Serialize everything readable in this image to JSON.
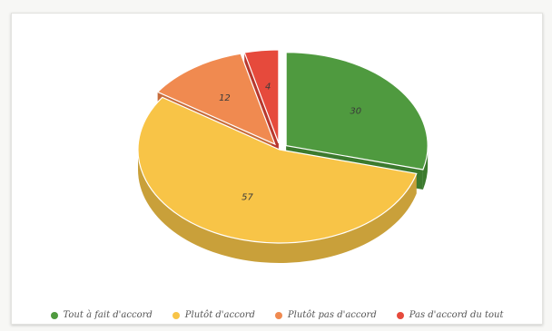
{
  "chart_data": {
    "type": "pie",
    "three_d": true,
    "legend_position": "bottom",
    "title": "",
    "categories": [
      "Tout à fait d'accord",
      "Plutôt d'accord",
      "Plutôt pas d'accord",
      "Pas d'accord du tout"
    ],
    "values": [
      30,
      57,
      12,
      4
    ],
    "labels": [
      "30",
      "57",
      "12",
      "4"
    ],
    "colors": [
      "#4f9a3f",
      "#f8c447",
      "#f08a50",
      "#e64a3c"
    ],
    "side_colors": [
      "#3c7a2e",
      "#c9a03a",
      "#c76c3b",
      "#b8382d"
    ],
    "exploded_slices": [
      "Tout à fait d'accord",
      "Plutôt pas d'accord",
      "Pas d'accord du tout"
    ]
  }
}
